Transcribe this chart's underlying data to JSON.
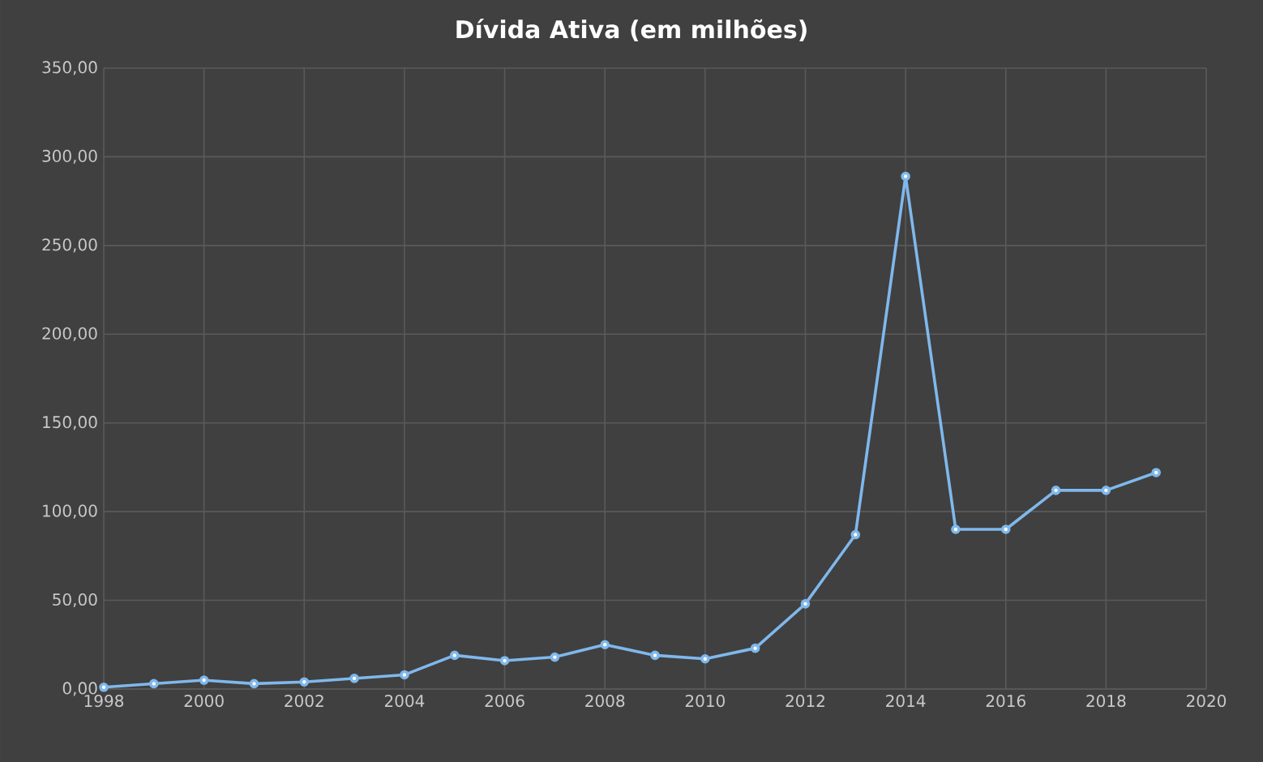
{
  "chart_data": {
    "type": "line",
    "title": "Dívida Ativa (em milhões)",
    "x": [
      1998,
      1999,
      2000,
      2001,
      2002,
      2003,
      2004,
      2005,
      2006,
      2007,
      2008,
      2009,
      2010,
      2011,
      2012,
      2013,
      2014,
      2015,
      2016,
      2017,
      2018,
      2019
    ],
    "series": [
      {
        "color": "#7fb8ec",
        "values": [
          1,
          3,
          5,
          3,
          4,
          6,
          8,
          19,
          16,
          18,
          25,
          19,
          17,
          23,
          48,
          87,
          289,
          90,
          90,
          112,
          112,
          122
        ]
      }
    ],
    "xlim": [
      1998,
      2020
    ],
    "xticks": [
      1998,
      2000,
      2002,
      2004,
      2006,
      2008,
      2010,
      2012,
      2014,
      2016,
      2018,
      2020
    ],
    "ylim": [
      0,
      350
    ],
    "yticks": [
      {
        "value": 0,
        "label": "0,00"
      },
      {
        "value": 50,
        "label": "50,00"
      },
      {
        "value": 100,
        "label": "100,00"
      },
      {
        "value": 150,
        "label": "150,00"
      },
      {
        "value": 200,
        "label": "200,00"
      },
      {
        "value": 250,
        "label": "250,00"
      },
      {
        "value": 300,
        "label": "300,00"
      },
      {
        "value": 350,
        "label": "350,00"
      }
    ],
    "grid": true,
    "marker": "circle",
    "line_style": "solid"
  }
}
